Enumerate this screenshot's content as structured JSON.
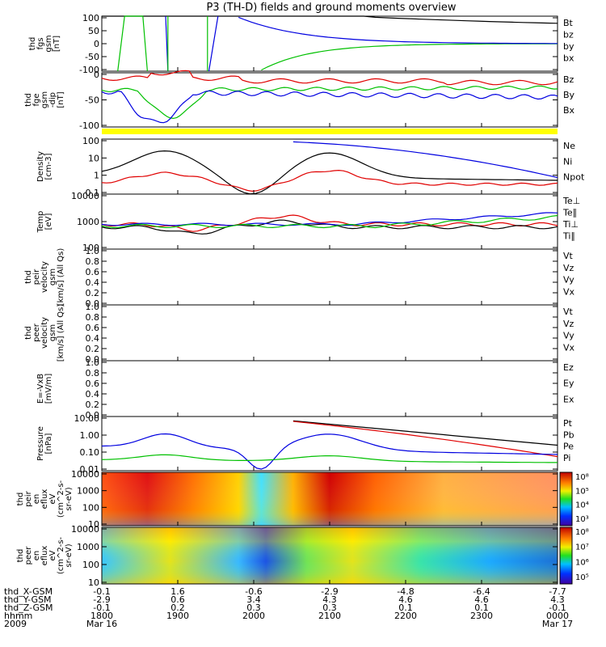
{
  "title": "P3 (TH-D) fields and ground moments overview",
  "chart_data": {
    "type": "line",
    "x_range": [
      "2009-03-16 18:00",
      "2009-03-17 00:00"
    ],
    "x_ticks": [
      "1800",
      "1900",
      "2000",
      "2100",
      "2200",
      "2300",
      "0000"
    ],
    "x_dates": [
      "Mar 16",
      "",
      "",
      "",
      "",
      "",
      "Mar 17"
    ],
    "x_ephemeris": [
      {
        "label": "thd_X-GSM",
        "values": [
          "-0.1",
          "1.6",
          "-0.6",
          "-2.9",
          "-4.8",
          "-6.4",
          "-7.7"
        ]
      },
      {
        "label": "thd_Y-GSM",
        "values": [
          "-2.9",
          "0.6",
          "3.4",
          "4.3",
          "4.6",
          "4.6",
          "4.3"
        ]
      },
      {
        "label": "thd_Z-GSM",
        "values": [
          "-0.1",
          "0.2",
          "0.3",
          "0.3",
          "0.1",
          "0.1",
          "-0.1"
        ]
      }
    ],
    "x_row_labels": [
      "hhmm",
      "2009"
    ],
    "panels": [
      {
        "ylabel": [
          "thd",
          "fgs",
          "gsm",
          "[nT]"
        ],
        "yticks": [
          "100",
          "50",
          "0",
          "-50",
          "-100"
        ],
        "ylim": [
          -100,
          100
        ],
        "legend": [
          {
            "name": "Bt",
            "color": "#000000"
          },
          {
            "name": "bz",
            "color": "#e00000"
          },
          {
            "name": "by",
            "color": "#00c000"
          },
          {
            "name": "bx",
            "color": "#0000e0"
          }
        ]
      },
      {
        "ylabel": [
          "thd",
          "fge",
          "gsm",
          "-dip",
          "[nT]"
        ],
        "yticks": [
          "0",
          "-50",
          "-100"
        ],
        "ylim": [
          -120,
          30
        ],
        "legend": [
          {
            "name": "Bz",
            "color": "#e00000"
          },
          {
            "name": "By",
            "color": "#00c000"
          },
          {
            "name": "Bx",
            "color": "#0000e0"
          }
        ]
      },
      {
        "ylabel": [
          "Density",
          "[cm-3]"
        ],
        "yticks": [
          "100",
          "10",
          "1",
          "0.1"
        ],
        "scale": "log",
        "ylim": [
          0.05,
          150
        ],
        "legend": [
          {
            "name": "Ne",
            "color": "#e00000"
          },
          {
            "name": "Ni",
            "color": "#000000"
          },
          {
            "name": "Npot",
            "color": "#0000e0"
          }
        ]
      },
      {
        "ylabel": [
          "Temp",
          "[eV]"
        ],
        "yticks": [
          "10000",
          "1000",
          "100"
        ],
        "scale": "log",
        "ylim": [
          50,
          15000
        ],
        "legend": [
          {
            "name": "Te⊥",
            "color": "#e00000"
          },
          {
            "name": "Te∥",
            "color": "#000000"
          },
          {
            "name": "Ti⊥",
            "color": "#0000e0"
          },
          {
            "name": "Ti∥",
            "color": "#00c000"
          }
        ]
      },
      {
        "ylabel": [
          "thd",
          "peir",
          "velocity",
          "gsm",
          "[km/s] (All Qs)"
        ],
        "yticks": [
          "1.0",
          "0.8",
          "0.6",
          "0.4",
          "0.2",
          "0.0"
        ],
        "ylim": [
          0,
          1
        ],
        "legend": [
          {
            "name": "Vt",
            "color": "#000000"
          },
          {
            "name": "Vz",
            "color": "#e00000"
          },
          {
            "name": "Vy",
            "color": "#00c000"
          },
          {
            "name": "Vx",
            "color": "#0000e0"
          }
        ]
      },
      {
        "ylabel": [
          "thd",
          "peer",
          "velocity",
          "gsm",
          "[km/s] (All Qs)"
        ],
        "yticks": [
          "1.0",
          "0.8",
          "0.6",
          "0.4",
          "0.2",
          "0.0"
        ],
        "ylim": [
          0,
          1
        ],
        "legend": [
          {
            "name": "Vt",
            "color": "#000000"
          },
          {
            "name": "Vz",
            "color": "#e00000"
          },
          {
            "name": "Vy",
            "color": "#00c000"
          },
          {
            "name": "Vx",
            "color": "#0000e0"
          }
        ]
      },
      {
        "ylabel": [
          "E=-VxB",
          "[mV/m]"
        ],
        "yticks": [
          "1.0",
          "0.8",
          "0.6",
          "0.4",
          "0.2",
          "0.0"
        ],
        "ylim": [
          0,
          1
        ],
        "legend": [
          {
            "name": "Ez",
            "color": "#e00000"
          },
          {
            "name": "Ey",
            "color": "#00c000"
          },
          {
            "name": "Ex",
            "color": "#0000e0"
          }
        ]
      },
      {
        "ylabel": [
          "Pressure",
          "[nPa]"
        ],
        "yticks": [
          "10.00",
          "1.00",
          "0.10",
          "0.01"
        ],
        "scale": "log",
        "ylim": [
          0.006,
          25
        ],
        "legend": [
          {
            "name": "Pt",
            "color": "#000000"
          },
          {
            "name": "Pb",
            "color": "#e00000"
          },
          {
            "name": "Pe",
            "color": "#00c000"
          },
          {
            "name": "Pi",
            "color": "#0000e0"
          }
        ]
      },
      {
        "ylabel": [
          "thd",
          "peir",
          "en",
          "eflux",
          "eV",
          "(cm^2-s-",
          "sr-eV)"
        ],
        "yticks": [
          "10000",
          "1000",
          "100",
          "10"
        ],
        "scale": "log",
        "type": "heatmap",
        "colorbar": [
          "10⁸",
          "10⁵",
          "10⁴",
          "10³"
        ]
      },
      {
        "ylabel": [
          "thd",
          "peer",
          "en",
          "eflux",
          "eV",
          "(cm^2-s-",
          "sr-eV)"
        ],
        "yticks": [
          "10000",
          "1000",
          "100",
          "10"
        ],
        "scale": "log",
        "type": "heatmap",
        "colorbar": [
          "10⁸",
          "10⁷",
          "10⁶",
          "10⁵"
        ]
      }
    ]
  }
}
